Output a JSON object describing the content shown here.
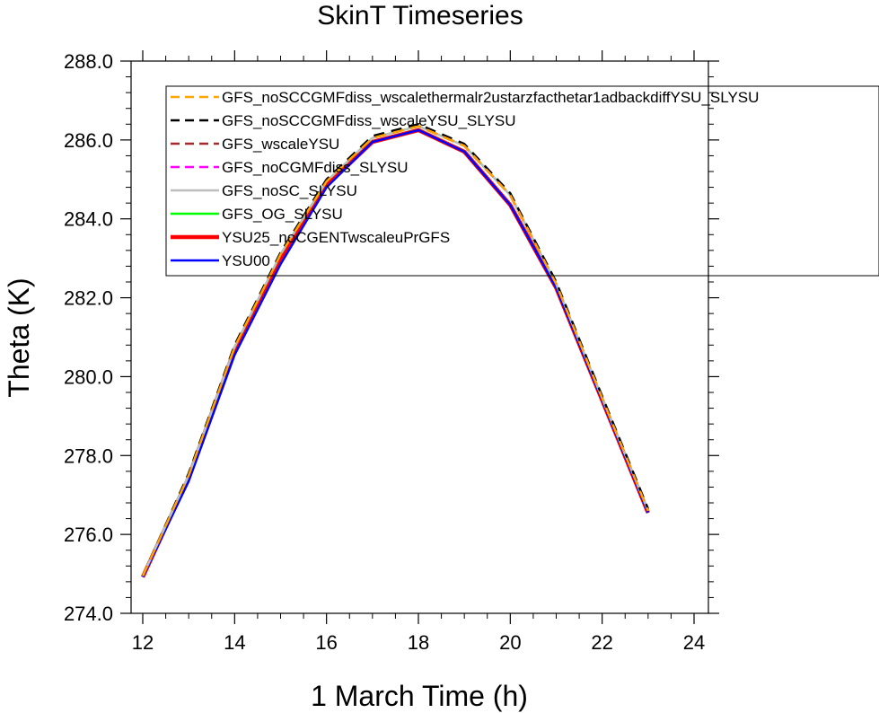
{
  "chart_data": {
    "type": "line",
    "title": "SkinT Timeseries",
    "xlabel": "1 March Time (h)",
    "ylabel": "Theta (K)",
    "xlim": [
      12,
      24
    ],
    "ylim": [
      274.0,
      288.0
    ],
    "xticks": [
      "12",
      "14",
      "16",
      "18",
      "20",
      "22",
      "24"
    ],
    "yticks": [
      "274.0",
      "276.0",
      "278.0",
      "280.0",
      "282.0",
      "284.0",
      "286.0",
      "288.0"
    ],
    "grid": false,
    "legend_position": "top-left",
    "x": [
      12,
      13,
      14,
      15,
      16,
      17,
      18,
      19,
      20,
      21,
      22,
      23
    ],
    "series": [
      {
        "name": "GFS_noSCCGMFdiss_wscalethermalr2ustarzfacthetar1adbackdiffYSU_SLYSU",
        "color": "#FFA500",
        "dash": "dash",
        "width": 2.5,
        "values": [
          274.95,
          277.5,
          280.75,
          283.1,
          284.95,
          286.05,
          286.35,
          285.85,
          284.6,
          282.35,
          279.45,
          276.6
        ]
      },
      {
        "name": "GFS_noSCCGMFdiss_wscaleYSU_SLYSU",
        "color": "#000000",
        "dash": "dash",
        "width": 2.5,
        "values": [
          274.95,
          277.55,
          280.8,
          283.15,
          285.0,
          286.1,
          286.4,
          285.9,
          284.65,
          282.4,
          279.5,
          276.65
        ]
      },
      {
        "name": "GFS_wscaleYSU",
        "color": "#A52A2A",
        "dash": "dash",
        "width": 2.5,
        "values": [
          274.95,
          277.5,
          280.75,
          283.1,
          284.95,
          286.05,
          286.35,
          285.85,
          284.6,
          282.35,
          279.45,
          276.6
        ]
      },
      {
        "name": "GFS_noCGMFdiss_SLYSU",
        "color": "#FF00FF",
        "dash": "dash",
        "width": 2.5,
        "values": [
          274.95,
          277.5,
          280.75,
          283.1,
          284.95,
          286.05,
          286.35,
          285.85,
          284.6,
          282.35,
          279.45,
          276.6
        ]
      },
      {
        "name": "GFS_noSC_SLYSU",
        "color": "#BEBEBE",
        "dash": "solid",
        "width": 2.5,
        "values": [
          274.95,
          277.5,
          280.75,
          283.1,
          284.95,
          286.05,
          286.35,
          285.85,
          284.6,
          282.35,
          279.45,
          276.6
        ]
      },
      {
        "name": "GFS_OG_SLYSU",
        "color": "#00FF00",
        "dash": "solid",
        "width": 2.5,
        "values": [
          274.95,
          277.5,
          280.75,
          283.1,
          284.95,
          286.05,
          286.35,
          285.85,
          284.6,
          282.35,
          279.45,
          276.6
        ]
      },
      {
        "name": "YSU25_noCGENTwscaleuPrGFS",
        "color": "#FF0000",
        "dash": "solid",
        "width": 4.5,
        "values": [
          274.92,
          277.45,
          280.7,
          283.0,
          284.85,
          285.95,
          286.25,
          285.7,
          284.35,
          282.25,
          279.4,
          276.55
        ]
      },
      {
        "name": "YSU00",
        "color": "#0000FF",
        "dash": "solid",
        "width": 2.5,
        "values": [
          274.92,
          277.35,
          280.55,
          282.85,
          284.8,
          285.95,
          286.25,
          285.7,
          284.35,
          282.25,
          279.4,
          276.55
        ]
      }
    ]
  }
}
